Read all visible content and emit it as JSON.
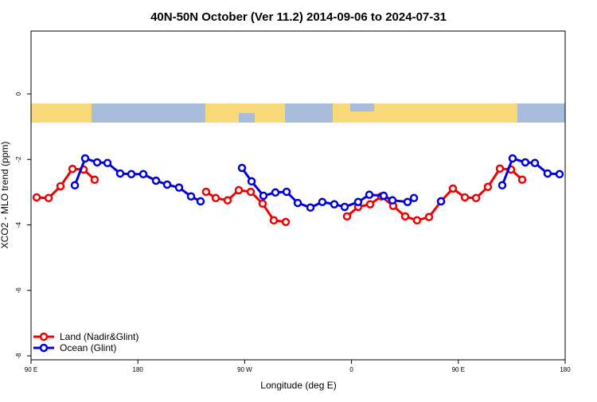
{
  "chart_data": {
    "type": "line",
    "title": "40N-50N October (Ver 11.2)   2014-09-06 to 2024-07-31",
    "x_label": "Longitude (deg E)",
    "y_label": "XCO2 - MLO trend (ppm)",
    "xlim": [
      90,
      540
    ],
    "xticks": [
      {
        "value": 90,
        "label": "90 E"
      },
      180,
      {
        "value": 270,
        "label": "90 W"
      },
      {
        "value": 360,
        "label": "0"
      },
      {
        "value": 450,
        "label": "90 E"
      },
      {
        "value": 540,
        "label": "180"
      }
    ],
    "ylim": [
      -8.12,
      1.92
    ],
    "yticks": [
      0,
      -2,
      -4,
      -6,
      -8
    ],
    "legend": "bottom-left",
    "series": [
      {
        "name": "Land (Nadir&Glint)",
        "color": "#ee0000",
        "x": [
          94.7,
          104.8,
          114.8,
          124.9,
          134.3,
          143.6,
          null,
          237.5,
          245.6,
          255.6,
          265.0,
          275.1,
          285.1,
          294.5,
          304.6,
          null,
          356.2,
          365.6,
          375.7,
          385.1,
          395.1,
          405.2,
          415.2,
          425.3,
          435.4,
          445.4,
          455.5,
          464.9,
          474.9,
          485.0,
          494.4,
          503.8
        ],
        "values": [
          -3.16,
          -3.18,
          -2.82,
          -2.29,
          -2.31,
          -2.62,
          null,
          -2.99,
          -3.18,
          -3.25,
          -2.94,
          -2.99,
          -3.35,
          -3.86,
          -3.91,
          null,
          -3.74,
          -3.45,
          -3.37,
          -3.13,
          -3.42,
          -3.74,
          -3.86,
          -3.76,
          -3.28,
          -2.89,
          -3.16,
          -3.18,
          -2.84,
          -2.28,
          -2.31,
          -2.62
        ]
      },
      {
        "name": "Ocean (Glint)",
        "color": "#0000dd",
        "x": [
          126.9,
          135.6,
          145.7,
          154.4,
          165.1,
          174.5,
          184.6,
          195.3,
          204.7,
          214.7,
          224.8,
          232.8,
          null,
          267.7,
          275.8,
          285.8,
          295.9,
          305.3,
          314.7,
          325.4,
          335.4,
          345.5,
          354.2,
          365.6,
          375.0,
          387.1,
          394.5,
          407.2,
          412.6,
          null,
          435.4,
          null,
          487.0,
          495.7,
          506.4,
          514.5,
          525.2,
          535.3
        ],
        "values": [
          -2.79,
          -1.97,
          -2.09,
          -2.11,
          -2.43,
          -2.45,
          -2.45,
          -2.65,
          -2.77,
          -2.86,
          -3.13,
          -3.28,
          null,
          -2.26,
          -2.67,
          -3.11,
          -3.01,
          -2.99,
          -3.33,
          -3.47,
          -3.3,
          -3.37,
          -3.45,
          -3.3,
          -3.08,
          -3.11,
          -3.25,
          -3.3,
          -3.18,
          null,
          -3.28,
          null,
          -2.79,
          -1.97,
          -2.09,
          -2.11,
          -2.43,
          -2.45
        ]
      }
    ]
  }
}
